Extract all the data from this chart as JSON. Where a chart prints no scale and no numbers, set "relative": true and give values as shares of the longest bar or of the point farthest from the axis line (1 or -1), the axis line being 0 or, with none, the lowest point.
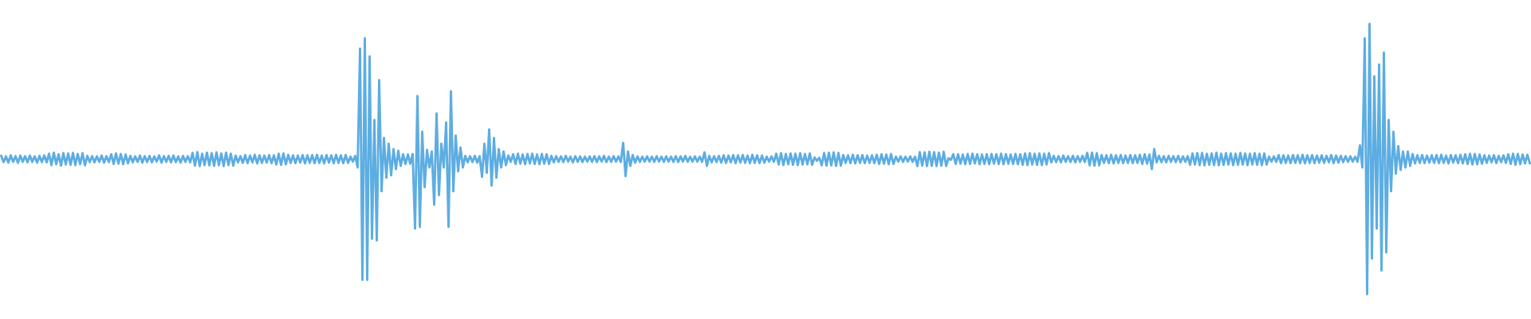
{
  "chart_data": {
    "type": "line",
    "relative": true,
    "categories": [
      null,
      null,
      null,
      null,
      null,
      null,
      null,
      null,
      null,
      null,
      null,
      null,
      null,
      null,
      null,
      null,
      null,
      null,
      null,
      null,
      null,
      null,
      null,
      null,
      null,
      null,
      null,
      null,
      null,
      null,
      null,
      null,
      null,
      null,
      null,
      null,
      null,
      null,
      null,
      null,
      null,
      null,
      null,
      null,
      null,
      null,
      null,
      null,
      null,
      null,
      null,
      null,
      null,
      null,
      null,
      null,
      null,
      null,
      null,
      null,
      null,
      null,
      null,
      null,
      null,
      null,
      null,
      null,
      null,
      null,
      null,
      null,
      null,
      null,
      null,
      null,
      null,
      null,
      null,
      null,
      null,
      null,
      null,
      null,
      null,
      null,
      null,
      null,
      null,
      null,
      null,
      null,
      null,
      null,
      null,
      null,
      null,
      null,
      null,
      null,
      null,
      null,
      null,
      null,
      null,
      null,
      null,
      null,
      null,
      null,
      null,
      null,
      null,
      null,
      null,
      null,
      null,
      null,
      null,
      null,
      null,
      null,
      null,
      null,
      null,
      null,
      null,
      null,
      null,
      null,
      null,
      null,
      null,
      null,
      null,
      null,
      null,
      null,
      null,
      null,
      null,
      null,
      null,
      null,
      null,
      null,
      null,
      null,
      null,
      null,
      null,
      null,
      null,
      null,
      null,
      null,
      null,
      null,
      null,
      null,
      null,
      null,
      null,
      null,
      null,
      null,
      null,
      null,
      null,
      null,
      null,
      null,
      null,
      null,
      null,
      null,
      null,
      null,
      null,
      null,
      null,
      null,
      null,
      null,
      null,
      null,
      null,
      null,
      null,
      null,
      null,
      null,
      null,
      null,
      null,
      null,
      null,
      null,
      null,
      null,
      null,
      null,
      null,
      null,
      null,
      null,
      null,
      null,
      null,
      null,
      null,
      null,
      null,
      null,
      null,
      null,
      null,
      null,
      null,
      null,
      null,
      null,
      null,
      null,
      null,
      null,
      null,
      null,
      null,
      null,
      null,
      null,
      null,
      null,
      null,
      null,
      null,
      null,
      null,
      null,
      null,
      null,
      null,
      null,
      null,
      null,
      null,
      null,
      null,
      null,
      null,
      null,
      null,
      null,
      null,
      null,
      null,
      null,
      null,
      null,
      null,
      null,
      null,
      null,
      null,
      null,
      null,
      null,
      null,
      null,
      null,
      null,
      null,
      null,
      null,
      null,
      null,
      null,
      null,
      null,
      null,
      null,
      null,
      null,
      null,
      null,
      null,
      null,
      null,
      null,
      null,
      null,
      null,
      null,
      null,
      null,
      null,
      null,
      null,
      null,
      null,
      null,
      null,
      null,
      null,
      null,
      null,
      null,
      null,
      null,
      null,
      null,
      null,
      null,
      null,
      null,
      null,
      null,
      null,
      null,
      null,
      null,
      null,
      null,
      null,
      null,
      null,
      null,
      null,
      null,
      null,
      null,
      null,
      null,
      null,
      null,
      null,
      null,
      null,
      null,
      null,
      null,
      null,
      null,
      null,
      null,
      null,
      null,
      null,
      null,
      null,
      null,
      null,
      null,
      null,
      null,
      null,
      null,
      null,
      null,
      null,
      null,
      null,
      null,
      null,
      null,
      null,
      null,
      null,
      null,
      null,
      null,
      null,
      null,
      null,
      null,
      null,
      null,
      null,
      null,
      null,
      null,
      null,
      null,
      null,
      null,
      null,
      null,
      null,
      null,
      null,
      null,
      null,
      null,
      null,
      null,
      null,
      null,
      null,
      null,
      null,
      null,
      null,
      null,
      null,
      null,
      null,
      null,
      null,
      null,
      null,
      null,
      null,
      null,
      null,
      null,
      null,
      null,
      null,
      null,
      null,
      null,
      null,
      null,
      null,
      null,
      null,
      null,
      null,
      null,
      null,
      null,
      null,
      null,
      null,
      null,
      null,
      null,
      null,
      null,
      null,
      null,
      null,
      null,
      null,
      null,
      null,
      null,
      null,
      null,
      null,
      null,
      null,
      null,
      null,
      null,
      null,
      null,
      null,
      null,
      null,
      null,
      null,
      null,
      null,
      null,
      null,
      null,
      null,
      null,
      null,
      null,
      null,
      null,
      null,
      null,
      null,
      null,
      null,
      null,
      null,
      null,
      null,
      null,
      null,
      null,
      null,
      null,
      null,
      null,
      null,
      null,
      null,
      null,
      null,
      null,
      null,
      null,
      null,
      null,
      null,
      null,
      null,
      null,
      null,
      null,
      null,
      null,
      null,
      null,
      null,
      null,
      null,
      null,
      null,
      null,
      null,
      null,
      null,
      null,
      null,
      null,
      null,
      null,
      null,
      null,
      null,
      null,
      null,
      null,
      null,
      null,
      null,
      null,
      null,
      null,
      null,
      null,
      null,
      null,
      null,
      null,
      null,
      null,
      null,
      null,
      null,
      null,
      null,
      null,
      null,
      null,
      null,
      null,
      null,
      null,
      null,
      null,
      null,
      null,
      null,
      null,
      null,
      null,
      null,
      null,
      null,
      null,
      null,
      null,
      null,
      null,
      null,
      null,
      null,
      null,
      null,
      null,
      null,
      null,
      null,
      null,
      null,
      null,
      null,
      null,
      null,
      null,
      null,
      null,
      null,
      null,
      null,
      null,
      null,
      null,
      null,
      null,
      null,
      null,
      null,
      null,
      null,
      null,
      null,
      null,
      null,
      null,
      null,
      null,
      null,
      null,
      null,
      null,
      null,
      null,
      null,
      null,
      null,
      null,
      null,
      null,
      null,
      null,
      null,
      null,
      null,
      null,
      null,
      null,
      null,
      null,
      null,
      null,
      null,
      null,
      null,
      null,
      null,
      null
    ],
    "series": [
      {
        "color": "#5dade2",
        "values": [
          0.512,
          0.489,
          0.51,
          0.487,
          0.514,
          0.49,
          0.511,
          0.486,
          0.513,
          0.49,
          0.511,
          0.488,
          0.513,
          0.49,
          0.51,
          0.487,
          0.512,
          0.489,
          0.514,
          0.488,
          0.52,
          0.478,
          0.524,
          0.481,
          0.518,
          0.476,
          0.522,
          0.48,
          0.521,
          0.479,
          0.523,
          0.478,
          0.519,
          0.481,
          0.522,
          0.477,
          0.512,
          0.489,
          0.511,
          0.488,
          0.51,
          0.49,
          0.513,
          0.487,
          0.511,
          0.489,
          0.518,
          0.482,
          0.521,
          0.483,
          0.519,
          0.481,
          0.517,
          0.484,
          0.512,
          0.488,
          0.51,
          0.49,
          0.513,
          0.487,
          0.511,
          0.489,
          0.512,
          0.488,
          0.51,
          0.491,
          0.514,
          0.487,
          0.511,
          0.49,
          0.512,
          0.488,
          0.513,
          0.489,
          0.51,
          0.487,
          0.512,
          0.49,
          0.511,
          0.488,
          0.523,
          0.476,
          0.526,
          0.474,
          0.52,
          0.478,
          0.524,
          0.477,
          0.522,
          0.475,
          0.525,
          0.477,
          0.521,
          0.474,
          0.524,
          0.478,
          0.52,
          0.476,
          0.513,
          0.488,
          0.511,
          0.486,
          0.515,
          0.485,
          0.513,
          0.488,
          0.516,
          0.484,
          0.514,
          0.486,
          0.513,
          0.487,
          0.515,
          0.485,
          0.514,
          0.48,
          0.52,
          0.479,
          0.521,
          0.481,
          0.516,
          0.486,
          0.514,
          0.485,
          0.513,
          0.487,
          0.515,
          0.484,
          0.514,
          0.486,
          0.515,
          0.485,
          0.516,
          0.486,
          0.513,
          0.484,
          0.515,
          0.487,
          0.514,
          0.485,
          0.516,
          0.486,
          0.514,
          0.485,
          0.515,
          0.486,
          0.509,
          0.491,
          0.512,
          0.469,
          0.909,
          0.053,
          0.947,
          0.053,
          0.88,
          0.205,
          0.645,
          0.199,
          0.792,
          0.381,
          0.578,
          0.431,
          0.557,
          0.44,
          0.537,
          0.463,
          0.531,
          0.475,
          0.518,
          0.482,
          0.517,
          0.483,
          0.519,
          0.243,
          0.733,
          0.249,
          0.601,
          0.396,
          0.534,
          0.469,
          0.528,
          0.331,
          0.669,
          0.367,
          0.557,
          0.469,
          0.636,
          0.249,
          0.751,
          0.381,
          0.587,
          0.455,
          0.543,
          0.469,
          0.512,
          0.488,
          0.511,
          0.489,
          0.512,
          0.487,
          0.511,
          0.434,
          0.557,
          0.449,
          0.61,
          0.402,
          0.578,
          0.431,
          0.537,
          0.469,
          0.528,
          0.478,
          0.513,
          0.49,
          0.518,
          0.482,
          0.52,
          0.483,
          0.517,
          0.481,
          0.519,
          0.484,
          0.52,
          0.482,
          0.517,
          0.481,
          0.519,
          0.483,
          0.518,
          0.482,
          0.512,
          0.488,
          0.511,
          0.49,
          0.51,
          0.489,
          0.512,
          0.491,
          0.509,
          0.488,
          0.511,
          0.49,
          0.51,
          0.489,
          0.509,
          0.491,
          0.51,
          0.49,
          0.511,
          0.489,
          0.51,
          0.491,
          0.512,
          0.489,
          0.509,
          0.49,
          0.511,
          0.491,
          0.51,
          0.489,
          0.56,
          0.437,
          0.528,
          0.475,
          0.515,
          0.487,
          0.51,
          0.49,
          0.509,
          0.491,
          0.51,
          0.491,
          0.509,
          0.49,
          0.511,
          0.491,
          0.509,
          0.49,
          0.51,
          0.491,
          0.509,
          0.49,
          0.511,
          0.489,
          0.51,
          0.491,
          0.512,
          0.49,
          0.509,
          0.491,
          0.51,
          0.491,
          0.509,
          0.49,
          0.525,
          0.475,
          0.512,
          0.488,
          0.511,
          0.489,
          0.512,
          0.487,
          0.514,
          0.486,
          0.513,
          0.488,
          0.515,
          0.485,
          0.514,
          0.487,
          0.515,
          0.486,
          0.513,
          0.485,
          0.516,
          0.486,
          0.514,
          0.485,
          0.513,
          0.487,
          0.509,
          0.491,
          0.51,
          0.49,
          0.52,
          0.48,
          0.522,
          0.478,
          0.519,
          0.481,
          0.521,
          0.479,
          0.52,
          0.478,
          0.522,
          0.48,
          0.519,
          0.481,
          0.521,
          0.479,
          0.506,
          0.494,
          0.505,
          0.477,
          0.523,
          0.476,
          0.524,
          0.477,
          0.525,
          0.475,
          0.523,
          0.476,
          0.515,
          0.486,
          0.514,
          0.485,
          0.516,
          0.484,
          0.514,
          0.486,
          0.515,
          0.485,
          0.513,
          0.486,
          0.514,
          0.485,
          0.516,
          0.482,
          0.518,
          0.483,
          0.517,
          0.481,
          0.519,
          0.482,
          0.509,
          0.491,
          0.51,
          0.49,
          0.509,
          0.491,
          0.51,
          0.49,
          0.509,
          0.474,
          0.526,
          0.476,
          0.525,
          0.474,
          0.527,
          0.475,
          0.526,
          0.474,
          0.524,
          0.476,
          0.527,
          0.475,
          0.503,
          0.497,
          0.518,
          0.482,
          0.518,
          0.483,
          0.517,
          0.481,
          0.519,
          0.482,
          0.52,
          0.484,
          0.518,
          0.481,
          0.517,
          0.482,
          0.518,
          0.481,
          0.519,
          0.483,
          0.518,
          0.482,
          0.52,
          0.481,
          0.518,
          0.483,
          0.517,
          0.482,
          0.519,
          0.481,
          0.518,
          0.479,
          0.521,
          0.478,
          0.522,
          0.48,
          0.52,
          0.479,
          0.521,
          0.478,
          0.52,
          0.48,
          0.522,
          0.488,
          0.512,
          0.489,
          0.511,
          0.488,
          0.513,
          0.49,
          0.511,
          0.489,
          0.512,
          0.488,
          0.511,
          0.49,
          0.512,
          0.489,
          0.523,
          0.477,
          0.524,
          0.476,
          0.522,
          0.477,
          0.515,
          0.486,
          0.514,
          0.485,
          0.516,
          0.484,
          0.514,
          0.486,
          0.515,
          0.485,
          0.513,
          0.486,
          0.515,
          0.485,
          0.514,
          0.486,
          0.516,
          0.482,
          0.518,
          0.483,
          0.517,
          0.463,
          0.537,
          0.488,
          0.512,
          0.489,
          0.511,
          0.488,
          0.512,
          0.49,
          0.511,
          0.489,
          0.512,
          0.488,
          0.51,
          0.49,
          0.511,
          0.479,
          0.521,
          0.48,
          0.522,
          0.478,
          0.523,
          0.477,
          0.52,
          0.479,
          0.521,
          0.478,
          0.524,
          0.477,
          0.52,
          0.479,
          0.522,
          0.48,
          0.521,
          0.478,
          0.52,
          0.479,
          0.523,
          0.48,
          0.521,
          0.478,
          0.52,
          0.48,
          0.522,
          0.479,
          0.52,
          0.478,
          0.521,
          0.48,
          0.509,
          0.491,
          0.51,
          0.49,
          0.515,
          0.485,
          0.514,
          0.486,
          0.513,
          0.485,
          0.515,
          0.486,
          0.514,
          0.485,
          0.516,
          0.484,
          0.514,
          0.486,
          0.515,
          0.485,
          0.513,
          0.487,
          0.514,
          0.486,
          0.512,
          0.488,
          0.515,
          0.485,
          0.513,
          0.487,
          0.512,
          0.489,
          0.511,
          0.49,
          0.51,
          0.491,
          0.509,
          0.49,
          0.551,
          0.469,
          0.947,
          0,
          1,
          0.132,
          0.806,
          0.243,
          0.85,
          0.088,
          0.894,
          0.155,
          0.645,
          0.381,
          0.601,
          0.446,
          0.548,
          0.46,
          0.528,
          0.469,
          0.528,
          0.475,
          0.519,
          0.484,
          0.514,
          0.486,
          0.515,
          0.485,
          0.513,
          0.487,
          0.514,
          0.486,
          0.515,
          0.485,
          0.516,
          0.486,
          0.513,
          0.484,
          0.515,
          0.487,
          0.514,
          0.485,
          0.516,
          0.484,
          0.518,
          0.482,
          0.52,
          0.48,
          0.519,
          0.481,
          0.517,
          0.483,
          0.514,
          0.486,
          0.513,
          0.488,
          0.515,
          0.485,
          0.512,
          0.489,
          0.514,
          0.486,
          0.518,
          0.482,
          0.52,
          0.479,
          0.519,
          0.481,
          0.517,
          0.484,
          0.516,
          0.485
        ]
      }
    ]
  }
}
